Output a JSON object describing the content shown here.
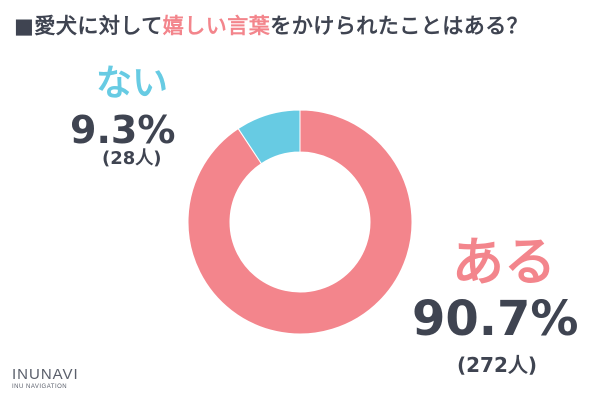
{
  "title": {
    "prefix": "■愛犬に対して",
    "highlight": "嬉しい言葉",
    "suffix": "をかけられたことはある？"
  },
  "colors": {
    "aru": "#f3858c",
    "nai": "#67cbe3",
    "text": "#3f4451"
  },
  "chart_data": {
    "type": "pie",
    "style": "donut",
    "slices": [
      {
        "label": "ある",
        "value": 90.7,
        "percent_label": "90.7%",
        "count_label": "(272人)",
        "count": 272,
        "color": "#f3858c"
      },
      {
        "label": "ない",
        "value": 9.3,
        "percent_label": "9.3%",
        "count_label": "(28人)",
        "count": 28,
        "color": "#67cbe3"
      }
    ]
  },
  "brand": {
    "name": "INUNAVI",
    "sub": "INU NAVIGATION"
  }
}
